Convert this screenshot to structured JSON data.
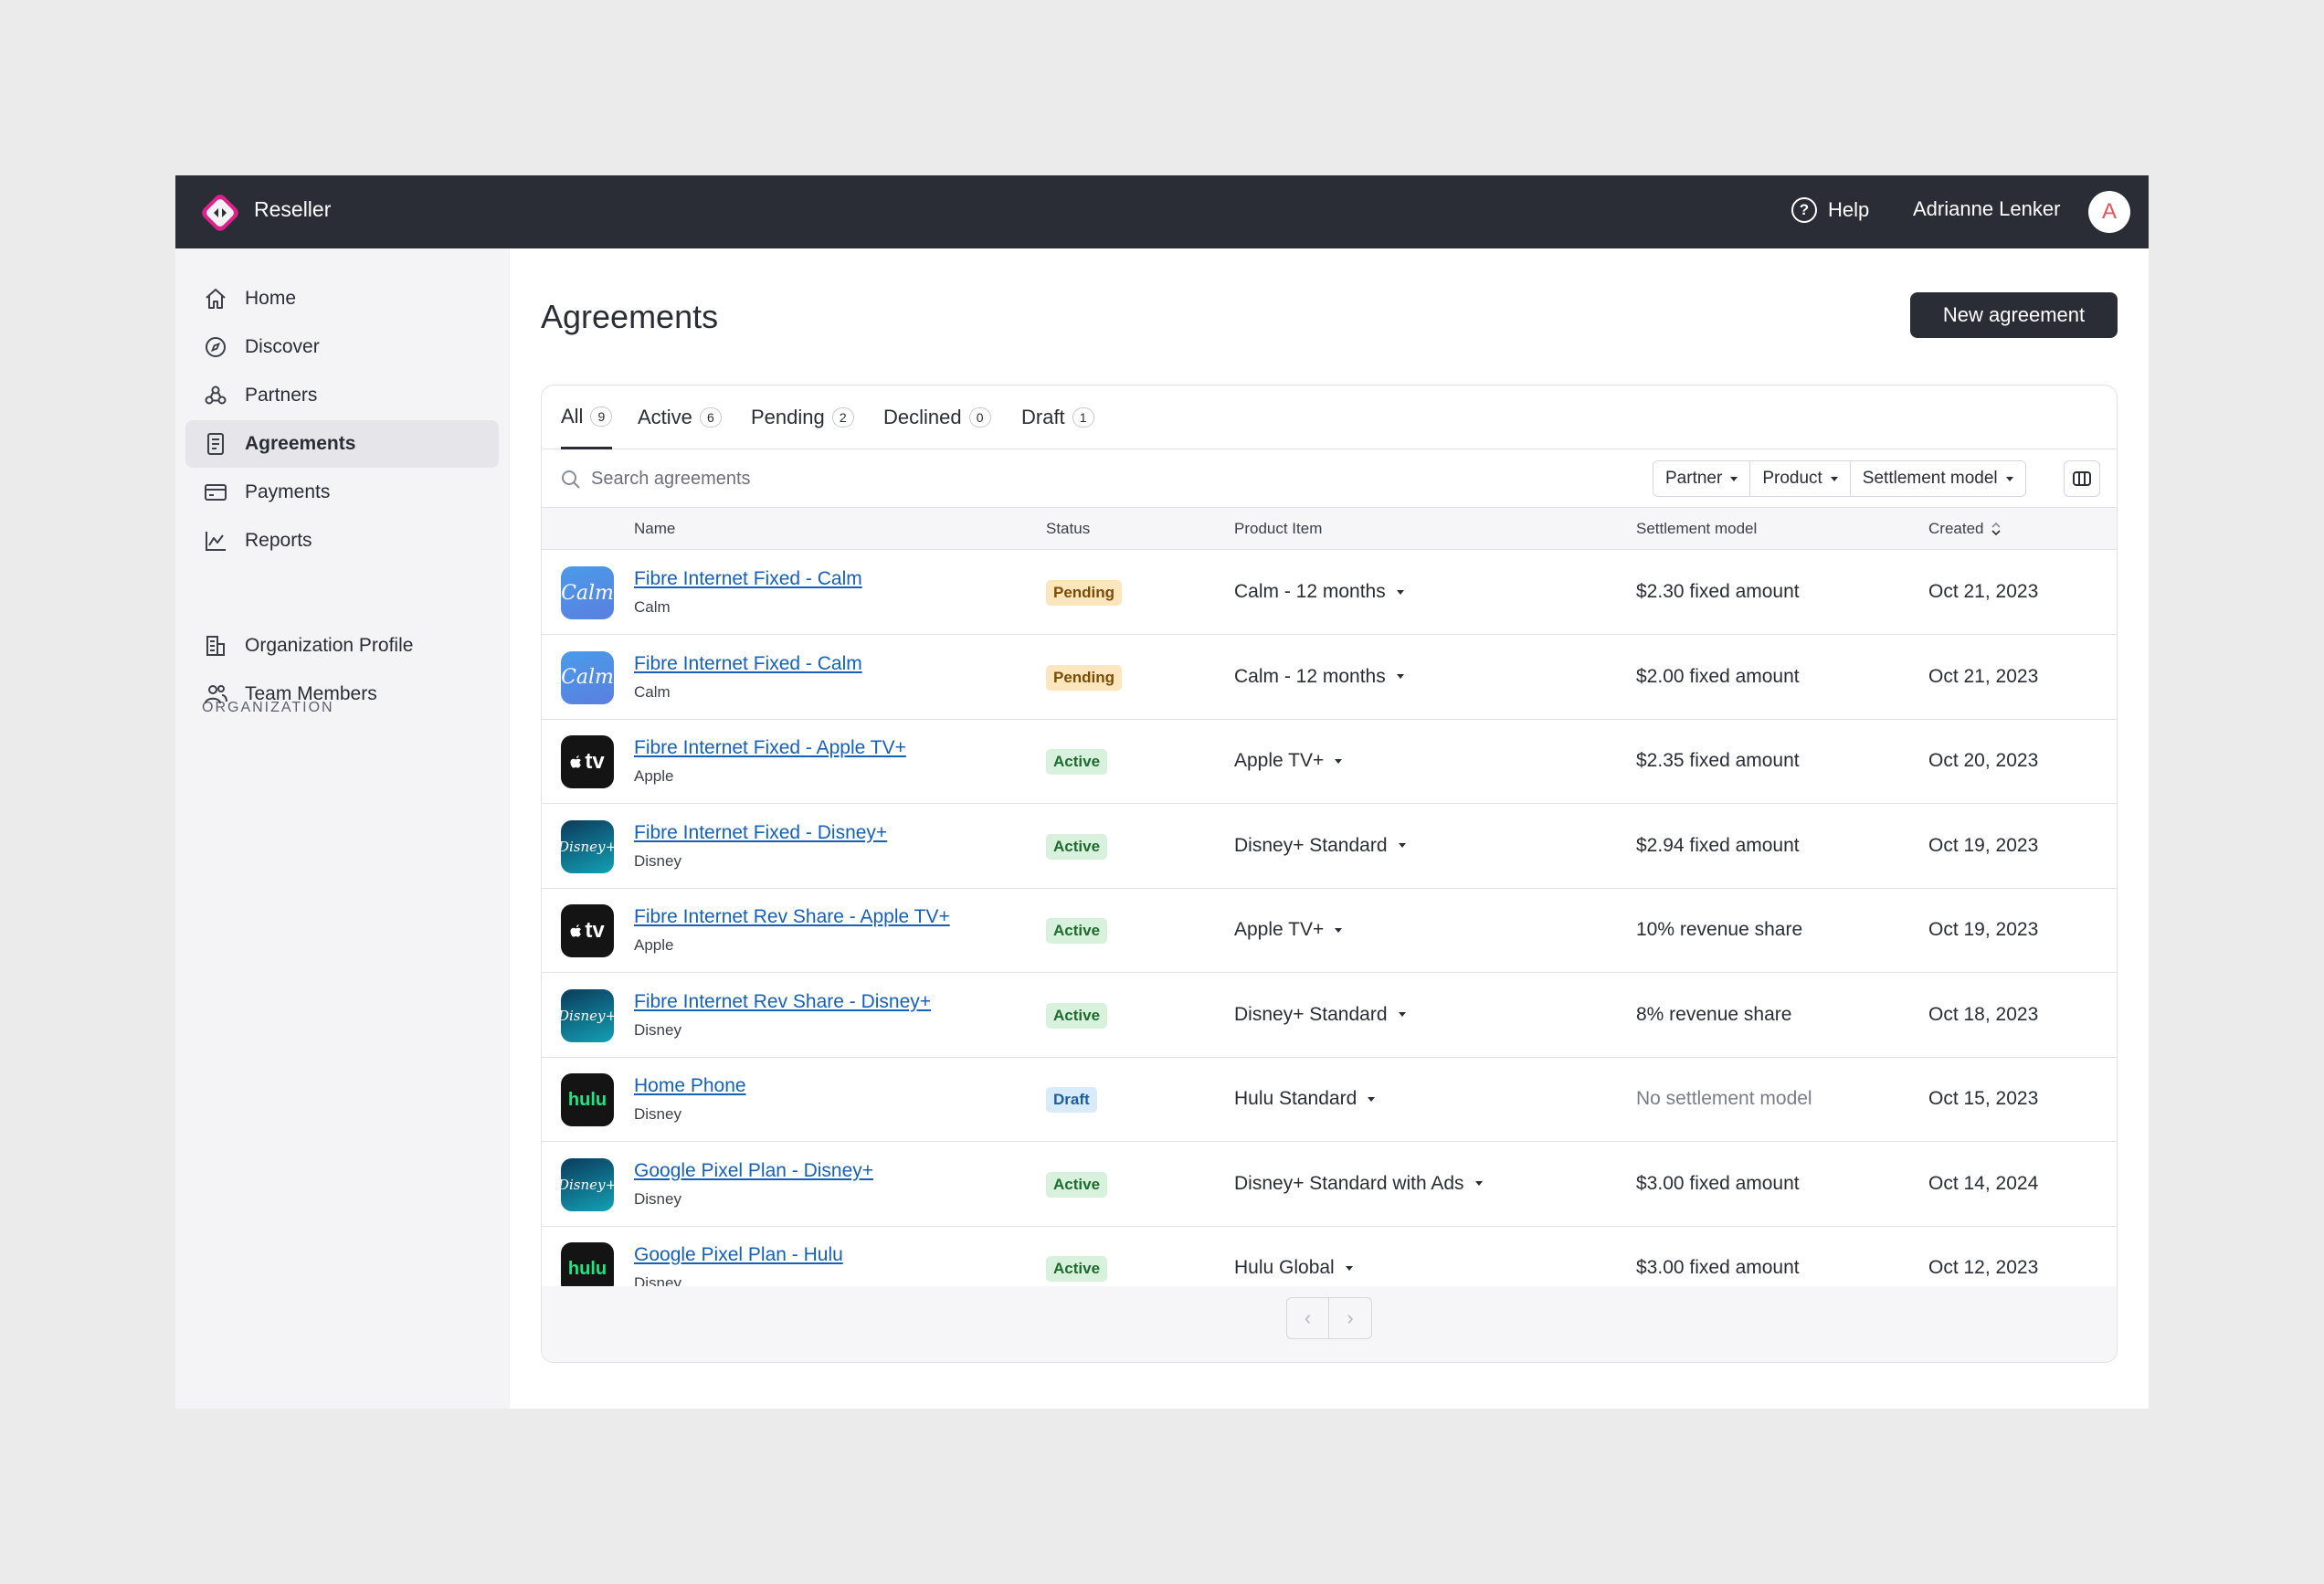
{
  "app": {
    "brand": "Reseller"
  },
  "header": {
    "help_label": "Help",
    "user_name": "Adrianne Lenker",
    "avatar_initial": "A"
  },
  "sidebar": {
    "items": [
      {
        "label": "Home",
        "icon": "home-icon"
      },
      {
        "label": "Discover",
        "icon": "compass-icon"
      },
      {
        "label": "Partners",
        "icon": "partners-icon"
      },
      {
        "label": "Agreements",
        "icon": "document-icon",
        "active": true
      },
      {
        "label": "Payments",
        "icon": "credit-card-icon"
      },
      {
        "label": "Reports",
        "icon": "chart-icon"
      }
    ],
    "section_label": "ORGANIZATION",
    "org_items": [
      {
        "label": "Organization Profile",
        "icon": "building-icon"
      },
      {
        "label": "Team Members",
        "icon": "users-icon"
      }
    ]
  },
  "page": {
    "title": "Agreements",
    "new_button": "New agreement"
  },
  "tabs": [
    {
      "label": "All",
      "count": "9",
      "active": true
    },
    {
      "label": "Active",
      "count": "6"
    },
    {
      "label": "Pending",
      "count": "2"
    },
    {
      "label": "Declined",
      "count": "0"
    },
    {
      "label": "Draft",
      "count": "1"
    }
  ],
  "search": {
    "placeholder": "Search agreements",
    "value": ""
  },
  "filters": [
    "Partner",
    "Product",
    "Settlement model"
  ],
  "table": {
    "columns": {
      "name": "Name",
      "status": "Status",
      "product": "Product Item",
      "settlement": "Settlement model",
      "created": "Created"
    },
    "rows": [
      {
        "name": "Fibre Internet Fixed - Calm",
        "company": "Calm",
        "logo": "Calm",
        "status": "Pending",
        "product": "Calm - 12 months",
        "settlement": "$2.30 fixed amount",
        "created": "Oct 21, 2023"
      },
      {
        "name": "Fibre Internet Fixed - Calm",
        "company": "Calm",
        "logo": "Calm",
        "status": "Pending",
        "product": "Calm - 12 months",
        "settlement": "$2.00 fixed amount",
        "created": "Oct 21, 2023"
      },
      {
        "name": "Fibre Internet Fixed - Apple TV+",
        "company": "Apple",
        "logo": "tv",
        "status": "Active",
        "product": "Apple TV+",
        "settlement": "$2.35 fixed amount",
        "created": "Oct 20, 2023"
      },
      {
        "name": "Fibre Internet Fixed - Disney+",
        "company": "Disney",
        "logo": "Disney+",
        "status": "Active",
        "product": "Disney+ Standard",
        "settlement": "$2.94 fixed amount",
        "created": "Oct 19, 2023"
      },
      {
        "name": "Fibre Internet Rev Share - Apple TV+",
        "company": "Apple",
        "logo": "tv",
        "status": "Active",
        "product": "Apple TV+",
        "settlement": "10% revenue share",
        "created": "Oct 19, 2023"
      },
      {
        "name": "Fibre Internet Rev Share - Disney+",
        "company": "Disney",
        "logo": "Disney+",
        "status": "Active",
        "product": "Disney+ Standard",
        "settlement": "8% revenue share",
        "created": "Oct 18, 2023"
      },
      {
        "name": "Home Phone",
        "company": "Disney",
        "logo": "hulu",
        "status": "Draft",
        "product": "Hulu Standard",
        "settlement": "No settlement model",
        "created": "Oct 15, 2023"
      },
      {
        "name": "Google Pixel Plan - Disney+",
        "company": "Disney",
        "logo": "Disney+",
        "status": "Active",
        "product": "Disney+ Standard with Ads",
        "settlement": "$3.00 fixed amount",
        "created": "Oct 14, 2024"
      },
      {
        "name": "Google Pixel Plan - Hulu",
        "company": "Disney",
        "logo": "hulu",
        "status": "Active",
        "product": "Hulu Global",
        "settlement": "$3.00 fixed amount",
        "created": "Oct 12, 2023"
      }
    ]
  },
  "colors": {
    "topbar": "#2b2d36",
    "link": "#1660b8",
    "pending": "#fde6bd",
    "active": "#d8f1dd",
    "draft": "#d9ebfa",
    "brand_accent": "#e0208a"
  }
}
